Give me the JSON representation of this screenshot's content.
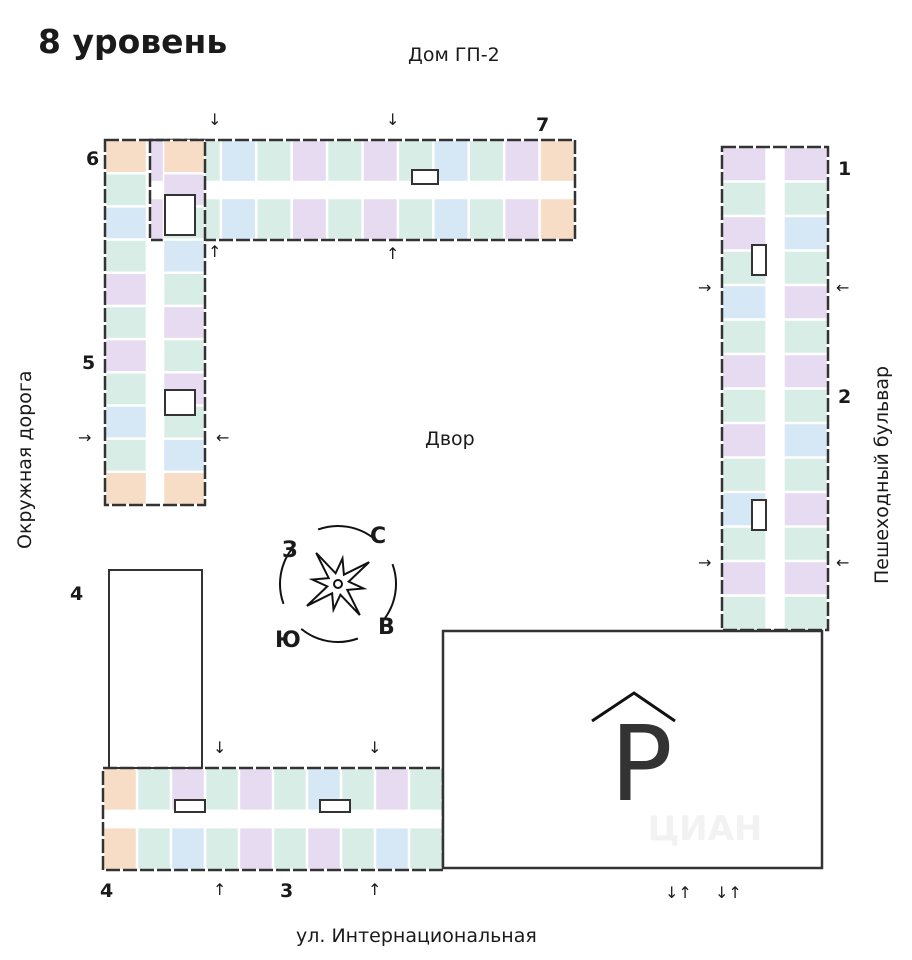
{
  "title": "8 уровень",
  "labels": {
    "north_house": "Дом ГП-2",
    "yard": "Двор",
    "west_road": "Окружная дорога",
    "east_road": "Пешеходный бульвар",
    "south_street": "ул. Интернациональная"
  },
  "sections": [
    "1",
    "2",
    "3",
    "4",
    "4",
    "5",
    "6",
    "7"
  ],
  "compass": {
    "west": "З",
    "north": "С",
    "south": "Ю",
    "east": "В"
  },
  "parking": {
    "label": "P"
  },
  "watermark": "ЦИАН",
  "arrows": {
    "down": "↓",
    "up": "↑",
    "right": "→",
    "left": "←",
    "pair": "↓↑"
  },
  "colors": {
    "orange": "#f7dcc6",
    "purple": "#e6dbf0",
    "green": "#d8ede5",
    "blue": "#d6e7f6",
    "wall": "#333333"
  }
}
